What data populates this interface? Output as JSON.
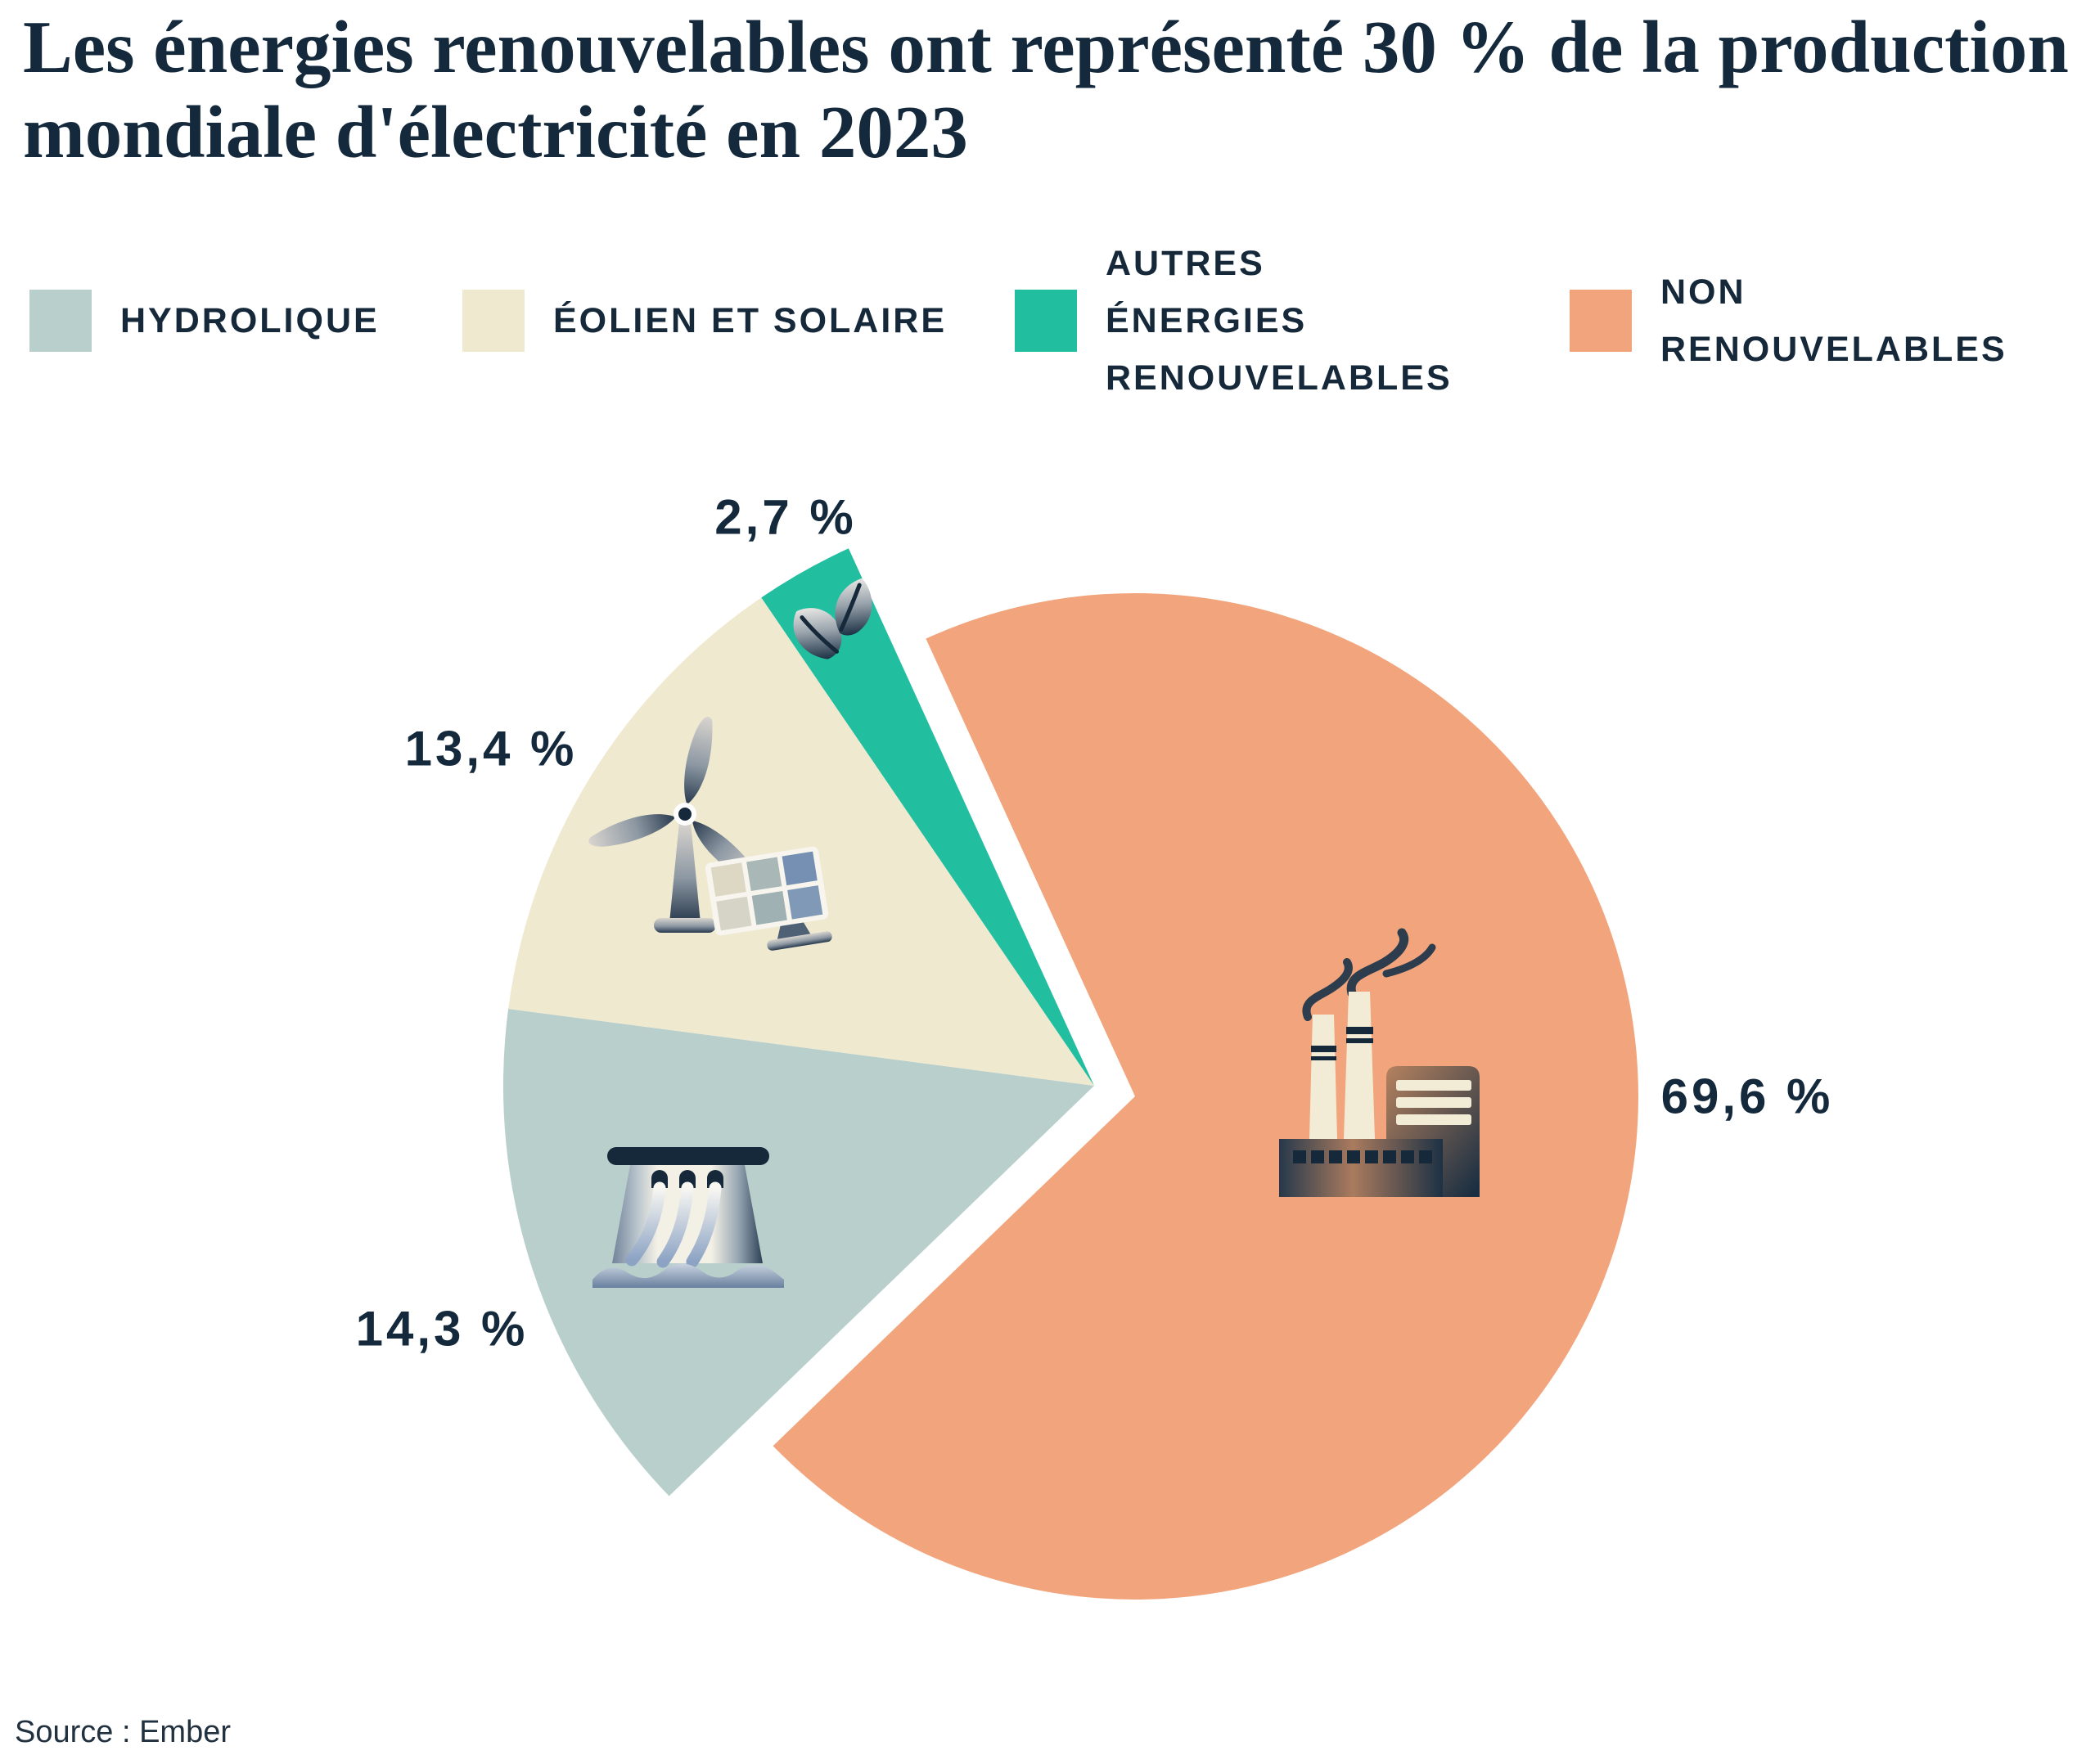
{
  "title": "Les énergies renouvelables ont représenté 30 % de la production mondiale d'électricité en 2023",
  "source": "Source : Ember",
  "legend": {
    "position": "top",
    "items": [
      {
        "label": "HYDROLIQUE",
        "color": "#b8cfcb"
      },
      {
        "label": "ÉOLIEN ET SOLAIRE",
        "color": "#efe9d0"
      },
      {
        "label": "AUTRES ÉNERGIES RENOUVELABLES",
        "color": "#22bea0"
      },
      {
        "label": "NON RENOUVELABLES",
        "color": "#f2a57c"
      }
    ]
  },
  "chart_data": {
    "type": "pie",
    "title": "Les énergies renouvelables ont représenté 30 % de la production mondiale d'électricité en 2023",
    "unit": "%",
    "slices": [
      {
        "label": "HYDROLIQUE",
        "value": 14.3,
        "display": "14,3 %",
        "color": "#b8cfcb",
        "icon": "dam-icon"
      },
      {
        "label": "ÉOLIEN ET SOLAIRE",
        "value": 13.4,
        "display": "13,4 %",
        "color": "#efe9d0",
        "icon": "wind-turbine-solar-icon"
      },
      {
        "label": "AUTRES ÉNERGIES RENOUVELABLES",
        "value": 2.7,
        "display": "2,7 %",
        "color": "#22bea0",
        "icon": "leaf-icon"
      },
      {
        "label": "NON RENOUVELABLES",
        "value": 69.6,
        "display": "69,6 %",
        "color": "#f2a57c",
        "icon": "factory-icon"
      }
    ],
    "layout": {
      "start_angle_deg_clockwise_from_north": -134,
      "clockwise": true,
      "exploded_slice": "NON RENOUVELABLES",
      "legend_position": "top",
      "labels": "outside"
    }
  }
}
